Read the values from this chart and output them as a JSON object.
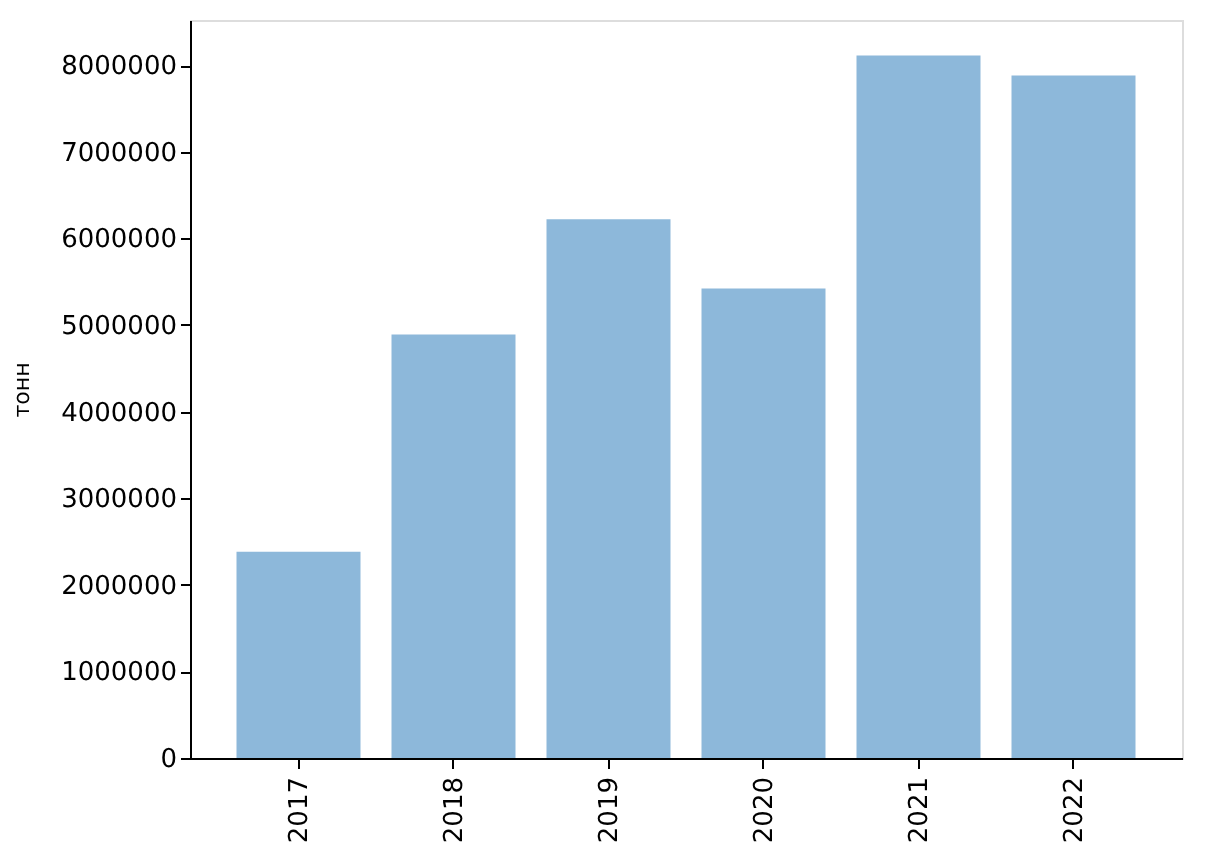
{
  "chart_data": {
    "type": "bar",
    "ylabel": "тонн",
    "categories": [
      "2017",
      "2018",
      "2019",
      "2020",
      "2021",
      "2022"
    ],
    "values": [
      2380000,
      4890000,
      6220000,
      5420000,
      8110000,
      7880000
    ],
    "color": "#8db8da",
    "ylim": [
      0,
      8520000
    ],
    "yticks": [
      0,
      1000000,
      2000000,
      3000000,
      4000000,
      5000000,
      6000000,
      7000000,
      8000000
    ],
    "grid": false
  }
}
